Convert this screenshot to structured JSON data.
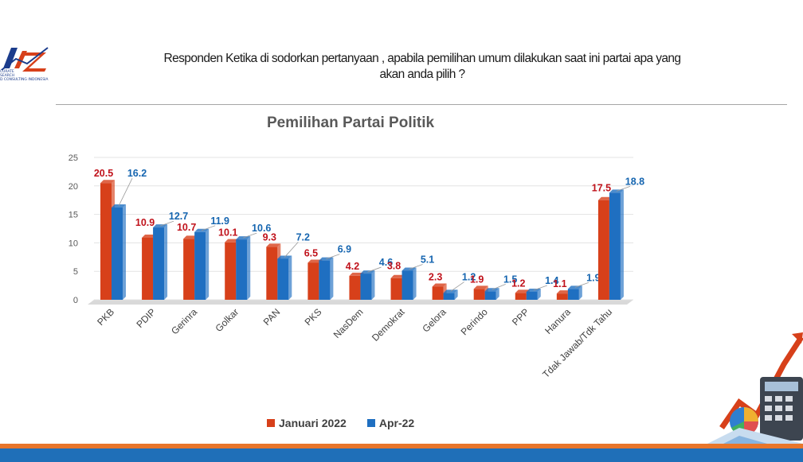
{
  "header": {
    "logo_text": [
      "CURATE",
      "SEARCH",
      "D CONSULTING INDONESIA"
    ],
    "question_line1": "Responden Ketika di sodorkan pertanyaan , apabila pemilihan umum dilakukan saat ini partai apa yang",
    "question_line2": "akan anda pilih ?"
  },
  "colors": {
    "series1": "#d7401a",
    "series2": "#1f6fc1",
    "series1_label": "#c0121b",
    "series2_label": "#1565b0",
    "band_orange": "#e8762b",
    "band_blue": "#1f6fb8"
  },
  "chart_data": {
    "type": "bar",
    "title": "Pemilihan Partai Politik",
    "categories": [
      "PKB",
      "PDIP",
      "Gerinra",
      "Golkar",
      "PAN",
      "PKS",
      "NasDem",
      "Demokrat",
      "Gelora",
      "Perindo",
      "PPP",
      "Hanura",
      "Tdak Jawab/Tdk Tahu"
    ],
    "series": [
      {
        "name": "Januari 2022",
        "values": [
          20.5,
          10.9,
          10.7,
          10.1,
          9.3,
          6.5,
          4.2,
          3.8,
          2.3,
          1.9,
          1.2,
          1.1,
          17.5
        ]
      },
      {
        "name": "Apr-22",
        "values": [
          16.2,
          12.7,
          11.9,
          10.6,
          7.2,
          6.9,
          4.6,
          5.1,
          1.2,
          1.5,
          1.4,
          1.9,
          18.8
        ]
      }
    ],
    "ylim": [
      0,
      25
    ],
    "yticks": [
      0,
      5,
      10,
      15,
      20,
      25
    ],
    "grid": true,
    "legend_position": "bottom"
  },
  "decoration": {
    "icon": "calculator-chart-illustration"
  }
}
